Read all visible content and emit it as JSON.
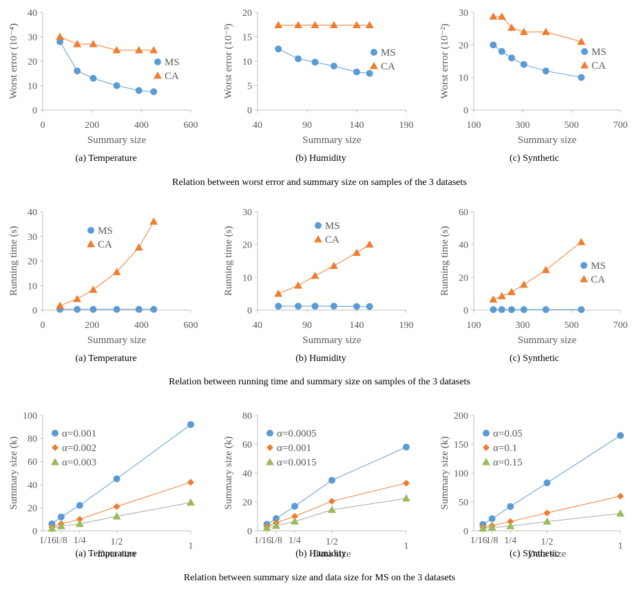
{
  "colors": {
    "ms": "#5B9BD5",
    "ca": "#ED7D31",
    "s1": "#5B9BD5",
    "s2": "#ED7D31",
    "s3": "#9BBB59",
    "line3": "#A5A5A5",
    "axis": "#BFBFBF",
    "text": "#595959"
  },
  "row_captions": [
    "Relation between worst error and summary size on samples of the 3 datasets",
    "Relation between running time and summary size on samples of the 3 datasets",
    "Relation between summary size and data size for MS on the 3 datasets"
  ],
  "sub_captions": [
    "(a) Temperature",
    "(b) Humidity",
    "(c) Synthetic",
    "(a) Temperature",
    "(b) Humidity",
    "(c) Synthetic",
    "(a) Temperature",
    "(b) Humidity",
    "(c) Synthetic"
  ],
  "chart_data": [
    {
      "type": "line",
      "xlabel": "Summary size",
      "ylabel": "Worst error (10⁻⁴)",
      "xlim": [
        0,
        600
      ],
      "ylim": [
        0,
        40
      ],
      "xticks": [
        0,
        200,
        400,
        600
      ],
      "yticks": [
        0,
        10,
        20,
        30,
        40
      ],
      "xticklabels": [
        "0",
        "200",
        "400",
        "600"
      ],
      "legend": "right",
      "series": [
        {
          "name": "MS",
          "marker": "circle",
          "x": [
            70,
            140,
            205,
            300,
            390,
            450
          ],
          "y": [
            28,
            16,
            13,
            10,
            8,
            7.5
          ]
        },
        {
          "name": "CA",
          "marker": "triangle",
          "x": [
            70,
            140,
            205,
            300,
            390,
            450
          ],
          "y": [
            30,
            27,
            27,
            24.5,
            24.5,
            24.5
          ]
        }
      ]
    },
    {
      "type": "line",
      "xlabel": "Summary size",
      "ylabel": "Worst error (10⁻³)",
      "xlim": [
        40,
        190
      ],
      "ylim": [
        0,
        20
      ],
      "xticks": [
        40,
        90,
        140,
        190
      ],
      "yticks": [
        0,
        5,
        10,
        15,
        20
      ],
      "xticklabels": [
        "40",
        "90",
        "140",
        "190"
      ],
      "legend": "right",
      "series": [
        {
          "name": "MS",
          "marker": "circle",
          "x": [
            61,
            81,
            98,
            117,
            140,
            153
          ],
          "y": [
            12.5,
            10.5,
            9.8,
            9,
            7.8,
            7.5
          ]
        },
        {
          "name": "CA",
          "marker": "triangle",
          "x": [
            61,
            81,
            98,
            117,
            140,
            153
          ],
          "y": [
            17.4,
            17.4,
            17.4,
            17.4,
            17.4,
            17.4
          ]
        }
      ]
    },
    {
      "type": "line",
      "xlabel": "Summary size",
      "ylabel": "Worst error (10⁻²)",
      "xlim": [
        100,
        700
      ],
      "ylim": [
        0,
        30
      ],
      "xticks": [
        100,
        300,
        500,
        700
      ],
      "yticks": [
        0,
        10,
        20,
        30
      ],
      "xticklabels": [
        "100",
        "300",
        "500",
        "700"
      ],
      "legend": "right",
      "series": [
        {
          "name": "MS",
          "marker": "circle",
          "x": [
            180,
            215,
            255,
            305,
            395,
            540
          ],
          "y": [
            20,
            18,
            16,
            14,
            12,
            10
          ]
        },
        {
          "name": "CA",
          "marker": "triangle",
          "x": [
            180,
            215,
            255,
            305,
            395,
            540
          ],
          "y": [
            28.7,
            28.7,
            25.3,
            24,
            24,
            21
          ]
        }
      ]
    },
    {
      "type": "line",
      "xlabel": "Summary size",
      "ylabel": "Running time (s)",
      "xlim": [
        0,
        600
      ],
      "ylim": [
        0,
        40
      ],
      "xticks": [
        0,
        200,
        400,
        600
      ],
      "yticks": [
        0,
        10,
        20,
        30,
        40
      ],
      "xticklabels": [
        "0",
        "200",
        "400",
        "600"
      ],
      "legend": "top-left",
      "series": [
        {
          "name": "MS",
          "marker": "circle",
          "x": [
            70,
            140,
            205,
            300,
            390,
            450
          ],
          "y": [
            0.3,
            0.3,
            0.3,
            0.3,
            0.3,
            0.3
          ]
        },
        {
          "name": "CA",
          "marker": "triangle",
          "x": [
            70,
            140,
            205,
            300,
            390,
            450
          ],
          "y": [
            1.8,
            4.5,
            8.3,
            15.5,
            25.5,
            36
          ]
        }
      ]
    },
    {
      "type": "line",
      "xlabel": "Summary size",
      "ylabel": "Running time (s)",
      "xlim": [
        40,
        190
      ],
      "ylim": [
        0,
        30
      ],
      "xticks": [
        40,
        90,
        140,
        190
      ],
      "yticks": [
        0,
        10,
        20,
        30
      ],
      "xticklabels": [
        "40",
        "90",
        "140",
        "190"
      ],
      "legend": "top-center",
      "series": [
        {
          "name": "MS",
          "marker": "circle",
          "x": [
            61,
            81,
            98,
            117,
            140,
            153
          ],
          "y": [
            1.2,
            1.2,
            1.2,
            1.2,
            1.1,
            1.1
          ]
        },
        {
          "name": "CA",
          "marker": "triangle",
          "x": [
            61,
            81,
            98,
            117,
            140,
            153
          ],
          "y": [
            5,
            7.5,
            10.5,
            13.5,
            17.5,
            20
          ]
        }
      ]
    },
    {
      "type": "line",
      "xlabel": "Summary size",
      "ylabel": "Running time (s)",
      "xlim": [
        100,
        700
      ],
      "ylim": [
        0,
        60
      ],
      "xticks": [
        100,
        300,
        500,
        700
      ],
      "yticks": [
        0,
        20,
        40,
        60
      ],
      "xticklabels": [
        "100",
        "300",
        "500",
        "700"
      ],
      "legend": "right",
      "series": [
        {
          "name": "MS",
          "marker": "circle",
          "x": [
            180,
            215,
            255,
            305,
            395,
            540
          ],
          "y": [
            0.3,
            0.3,
            0.3,
            0.3,
            0.3,
            0.3
          ]
        },
        {
          "name": "CA",
          "marker": "triangle",
          "x": [
            180,
            215,
            255,
            305,
            395,
            540
          ],
          "y": [
            6.5,
            8.5,
            11,
            15.5,
            24.5,
            41.5
          ]
        }
      ]
    },
    {
      "type": "line",
      "xlabel": "Data size",
      "ylabel": "Summary size (k)",
      "xlim": [
        0,
        1
      ],
      "ylim": [
        0,
        100
      ],
      "xticks": [
        0.0625,
        0.125,
        0.25,
        0.5,
        1
      ],
      "yticks": [
        0,
        20,
        40,
        60,
        80,
        100
      ],
      "xticklabels": [
        "1/16",
        "1/8",
        "1/4",
        "1/2",
        "1"
      ],
      "legend": "top-left",
      "series": [
        {
          "name": "α=0.001",
          "marker": "circle",
          "x": [
            0.0625,
            0.125,
            0.25,
            0.5,
            1
          ],
          "y": [
            6,
            12,
            22,
            45,
            92
          ]
        },
        {
          "name": "α=0.002",
          "marker": "diamond",
          "x": [
            0.0625,
            0.125,
            0.25,
            0.5,
            1
          ],
          "y": [
            3,
            6,
            10,
            21,
            42
          ]
        },
        {
          "name": "α=0.003",
          "marker": "triangle",
          "x": [
            0.0625,
            0.125,
            0.25,
            0.5,
            1
          ],
          "y": [
            2,
            4,
            6,
            12.5,
            24.5
          ]
        }
      ]
    },
    {
      "type": "line",
      "xlabel": "Data size",
      "ylabel": "Summary size (k)",
      "xlim": [
        0,
        1
      ],
      "ylim": [
        0,
        80
      ],
      "xticks": [
        0.0625,
        0.125,
        0.25,
        0.5,
        1
      ],
      "yticks": [
        0,
        20,
        40,
        60,
        80
      ],
      "xticklabels": [
        "1/16",
        "1/8",
        "1/4",
        "1/2",
        "1"
      ],
      "legend": "top-left",
      "series": [
        {
          "name": "α=0.0005",
          "marker": "circle",
          "x": [
            0.0625,
            0.125,
            0.25,
            0.5,
            1
          ],
          "y": [
            4.5,
            8.5,
            17,
            35,
            58
          ]
        },
        {
          "name": "α=0.001",
          "marker": "diamond",
          "x": [
            0.0625,
            0.125,
            0.25,
            0.5,
            1
          ],
          "y": [
            3,
            5.5,
            10,
            20.5,
            33
          ]
        },
        {
          "name": "α=0.0015",
          "marker": "triangle",
          "x": [
            0.0625,
            0.125,
            0.25,
            0.5,
            1
          ],
          "y": [
            2,
            3.5,
            6.5,
            14.5,
            22.5
          ]
        }
      ]
    },
    {
      "type": "line",
      "xlabel": "Data size",
      "ylabel": "Summary size (k)",
      "xlim": [
        0,
        1
      ],
      "ylim": [
        0,
        200
      ],
      "xticks": [
        0.0625,
        0.125,
        0.25,
        0.5,
        1
      ],
      "yticks": [
        0,
        50,
        100,
        150,
        200
      ],
      "xticklabels": [
        "1/16",
        "1/8",
        "1/4",
        "1/2",
        "1"
      ],
      "legend": "top-left",
      "series": [
        {
          "name": "α=0.05",
          "marker": "circle",
          "x": [
            0.0625,
            0.125,
            0.25,
            0.5,
            1
          ],
          "y": [
            11,
            21,
            42,
            83,
            165
          ]
        },
        {
          "name": "α=0.1",
          "marker": "diamond",
          "x": [
            0.0625,
            0.125,
            0.25,
            0.5,
            1
          ],
          "y": [
            6,
            9,
            16,
            31,
            60
          ]
        },
        {
          "name": "α=0.15",
          "marker": "triangle",
          "x": [
            0.0625,
            0.125,
            0.25,
            0.5,
            1
          ],
          "y": [
            4,
            6,
            8,
            16,
            30
          ]
        }
      ]
    }
  ]
}
